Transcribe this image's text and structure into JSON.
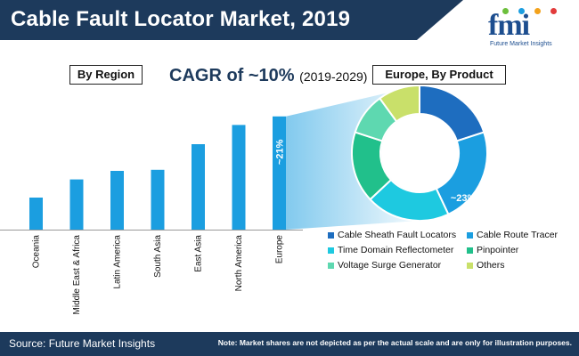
{
  "header": {
    "title": "Cable Fault Locator Market, 2019"
  },
  "logo": {
    "text": "fmi",
    "subtitle": "Future Market Insights"
  },
  "region_label": "By Region",
  "cagr": {
    "text": "CAGR of ~10%",
    "years": "(2019-2029)"
  },
  "product_label": "Europe, By Product",
  "footer": {
    "source": "Source: Future Market Insights",
    "note": "Note: Market shares are not depicted as per the actual scale and are only for illustration purposes."
  },
  "colors": {
    "navy": "#1d3a5c",
    "bar": "#1b9ee0"
  },
  "chart_data": [
    {
      "type": "bar",
      "title": "By Region",
      "categories": [
        "Oceania",
        "Middle East & Africa",
        "Latin America",
        "South Asia",
        "East Asia",
        "North America",
        "Europe"
      ],
      "values": [
        30,
        47,
        55,
        56,
        80,
        98,
        106
      ],
      "annotation": "~21%",
      "annotated_category": "Europe"
    },
    {
      "type": "pie",
      "title": "Europe, By Product",
      "donut": true,
      "categories": [
        "Cable Sheath Fault Locators",
        "Cable Route Tracer",
        "Time Domain Reflectometer",
        "Pinpointer",
        "Voltage Surge Generator",
        "Others"
      ],
      "values": [
        20,
        23,
        20,
        17,
        10,
        10
      ],
      "colors": [
        "#1e6dbf",
        "#1b9ee0",
        "#1ec9e0",
        "#21c08b",
        "#5ed8b0",
        "#c9e06a"
      ],
      "annotation": "~23%",
      "annotated_category": "Cable Route Tracer"
    }
  ]
}
